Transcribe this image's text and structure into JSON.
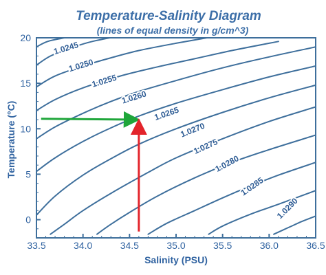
{
  "chart_data": {
    "type": "line",
    "title": "Temperature-Salinity Diagram",
    "subtitle": "(lines of equal density in g/cm^3)",
    "xlabel": "Salinity (PSU)",
    "ylabel": "Temperature (°C)",
    "xlim": [
      33.5,
      36.5
    ],
    "ylim": [
      -2,
      20
    ],
    "x_ticks": [
      33.5,
      34.0,
      34.5,
      35.0,
      35.5,
      36.0,
      36.5
    ],
    "x_tick_labels": [
      "33.5",
      "34.0",
      "34.5",
      "35.0",
      "35.5",
      "36.0",
      "36.5"
    ],
    "y_ticks": [
      0,
      5,
      10,
      15,
      20
    ],
    "y_tick_labels": [
      "0",
      "5",
      "10",
      "15",
      "20"
    ],
    "line_color": "#3e6f9c",
    "series": [
      {
        "name": "1.0245",
        "x": [
          33.5,
          33.62,
          33.8,
          34.0,
          34.2
        ],
        "y": [
          19.0,
          19.6,
          20.0,
          20.4,
          20.8
        ]
      },
      {
        "name": "1.0250",
        "x": [
          33.5,
          33.65,
          33.85,
          34.1,
          34.5,
          34.85
        ],
        "y": [
          17.0,
          18.0,
          18.8,
          19.6,
          20.4,
          21.0
        ]
      },
      {
        "name": "1.0255",
        "x": [
          33.5,
          33.7,
          34.0,
          34.3,
          34.6,
          35.0,
          35.5
        ],
        "y": [
          14.6,
          15.8,
          16.9,
          17.8,
          18.6,
          19.4,
          20.3
        ]
      },
      {
        "name": "1.0260",
        "x": [
          33.5,
          33.7,
          34.0,
          34.4,
          34.8,
          35.2,
          35.6,
          36.1
        ],
        "y": [
          12.0,
          13.2,
          14.5,
          15.8,
          16.8,
          17.7,
          18.6,
          19.6
        ]
      },
      {
        "name": "1.0265",
        "x": [
          33.5,
          33.7,
          34.0,
          34.3,
          34.6,
          35.0,
          35.5,
          36.0,
          36.5
        ],
        "y": [
          8.9,
          10.2,
          11.7,
          13.0,
          14.1,
          15.3,
          16.7,
          17.9,
          19.0
        ]
      },
      {
        "name": "1.0270",
        "x": [
          33.5,
          33.7,
          34.0,
          34.3,
          34.6,
          35.0,
          35.5,
          36.0,
          36.5
        ],
        "y": [
          5.3,
          6.8,
          8.6,
          10.1,
          11.4,
          12.8,
          14.3,
          15.7,
          16.9
        ]
      },
      {
        "name": "1.0275",
        "x": [
          33.5,
          33.7,
          34.0,
          34.3,
          34.6,
          35.0,
          35.5,
          36.0,
          36.5
        ],
        "y": [
          0.5,
          2.6,
          4.9,
          6.7,
          8.3,
          10.0,
          11.8,
          13.4,
          14.8
        ]
      },
      {
        "name": "1.0280",
        "x": [
          33.65,
          33.8,
          34.0,
          34.3,
          34.7,
          35.0,
          35.5,
          36.0,
          36.5
        ],
        "y": [
          -1.6,
          -0.5,
          1.0,
          2.9,
          5.2,
          6.8,
          8.9,
          10.8,
          12.4
        ]
      },
      {
        "name": "1.0285",
        "x": [
          34.15,
          34.3,
          34.5,
          34.8,
          35.2,
          35.6,
          36.0,
          36.5
        ],
        "y": [
          -1.6,
          -0.5,
          0.8,
          2.6,
          4.6,
          6.3,
          7.7,
          9.3
        ]
      },
      {
        "name": "1.0290",
        "x": [
          34.7,
          34.9,
          35.2,
          35.5,
          35.8,
          36.1,
          36.5
        ],
        "y": [
          -1.6,
          -0.4,
          1.0,
          2.4,
          3.7,
          4.9,
          6.3
        ]
      },
      {
        "name": "",
        "x": [
          35.35,
          35.5,
          35.8,
          36.1,
          36.5
        ],
        "y": [
          -1.6,
          -0.7,
          0.6,
          1.7,
          3.2
        ]
      },
      {
        "name": "",
        "x": [
          36.05,
          36.2,
          36.35,
          36.5
        ],
        "y": [
          -1.6,
          -0.9,
          -0.2,
          0.4
        ]
      }
    ],
    "contour_labels": [
      {
        "text": "1.0245",
        "x": 33.82,
        "y": 18.8,
        "angle": -17
      },
      {
        "text": "1.0250",
        "x": 33.98,
        "y": 16.9,
        "angle": -17
      },
      {
        "text": "1.0255",
        "x": 34.23,
        "y": 15.2,
        "angle": -17
      },
      {
        "text": "1.0260",
        "x": 34.55,
        "y": 13.4,
        "angle": -17
      },
      {
        "text": "1.0265",
        "x": 34.9,
        "y": 11.6,
        "angle": -19
      },
      {
        "text": "1.0270",
        "x": 35.18,
        "y": 9.8,
        "angle": -22
      },
      {
        "text": "1.0275",
        "x": 35.32,
        "y": 8.0,
        "angle": -24
      },
      {
        "text": "1.0280",
        "x": 35.55,
        "y": 6.1,
        "angle": -28
      },
      {
        "text": "1.0285",
        "x": 35.82,
        "y": 3.6,
        "angle": -35
      },
      {
        "text": "1.0290",
        "x": 36.2,
        "y": 1.2,
        "angle": -45
      }
    ],
    "annotations": [
      {
        "name": "green-arrow",
        "color": "#1fa63a",
        "from": [
          33.55,
          11.1
        ],
        "to": [
          34.57,
          11.0
        ]
      },
      {
        "name": "red-arrow",
        "color": "#e3242b",
        "from": [
          34.6,
          -1.3
        ],
        "to": [
          34.6,
          10.7
        ]
      }
    ],
    "grid": false,
    "legend": "none"
  }
}
